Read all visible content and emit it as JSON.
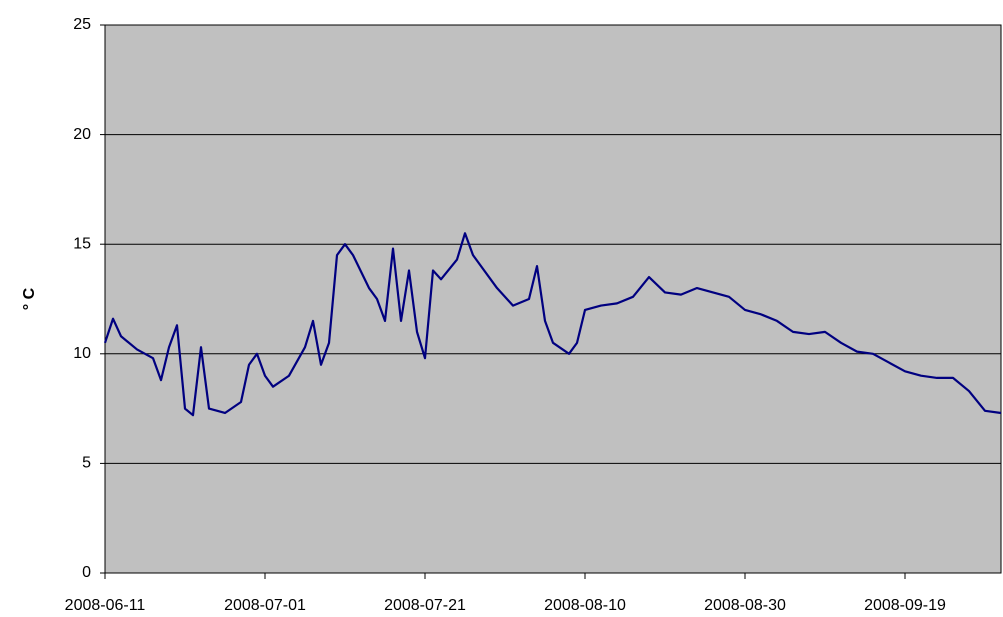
{
  "chart_data": {
    "type": "line",
    "y_label": "° C",
    "x": [
      "2008-06-11",
      "2008-06-12",
      "2008-06-13",
      "2008-06-15",
      "2008-06-17",
      "2008-06-18",
      "2008-06-19",
      "2008-06-20",
      "2008-06-21",
      "2008-06-22",
      "2008-06-23",
      "2008-06-24",
      "2008-06-26",
      "2008-06-28",
      "2008-06-29",
      "2008-06-30",
      "2008-07-01",
      "2008-07-02",
      "2008-07-04",
      "2008-07-06",
      "2008-07-07",
      "2008-07-08",
      "2008-07-09",
      "2008-07-10",
      "2008-07-11",
      "2008-07-12",
      "2008-07-14",
      "2008-07-15",
      "2008-07-16",
      "2008-07-17",
      "2008-07-18",
      "2008-07-19",
      "2008-07-20",
      "2008-07-21",
      "2008-07-22",
      "2008-07-23",
      "2008-07-25",
      "2008-07-26",
      "2008-07-27",
      "2008-07-28",
      "2008-07-30",
      "2008-08-01",
      "2008-08-03",
      "2008-08-04",
      "2008-08-05",
      "2008-08-06",
      "2008-08-08",
      "2008-08-09",
      "2008-08-10",
      "2008-08-12",
      "2008-08-14",
      "2008-08-16",
      "2008-08-18",
      "2008-08-20",
      "2008-08-22",
      "2008-08-24",
      "2008-08-26",
      "2008-08-28",
      "2008-08-30",
      "2008-09-01",
      "2008-09-03",
      "2008-09-05",
      "2008-09-07",
      "2008-09-09",
      "2008-09-11",
      "2008-09-13",
      "2008-09-15",
      "2008-09-17",
      "2008-09-19",
      "2008-09-21",
      "2008-09-23",
      "2008-09-25",
      "2008-09-27",
      "2008-09-29",
      "2008-10-01"
    ],
    "series": [
      {
        "color": "#000080",
        "values": [
          10.5,
          11.6,
          10.8,
          10.2,
          9.8,
          8.8,
          10.3,
          11.3,
          7.5,
          7.2,
          10.3,
          7.5,
          7.3,
          7.8,
          9.5,
          10.0,
          9.0,
          8.5,
          9.0,
          10.3,
          11.5,
          9.5,
          10.5,
          14.5,
          15.0,
          14.5,
          13.0,
          12.5,
          11.5,
          14.8,
          11.5,
          13.8,
          11.0,
          9.8,
          13.8,
          13.4,
          14.3,
          15.5,
          14.5,
          14.0,
          13.0,
          12.2,
          12.5,
          14.0,
          11.5,
          10.5,
          10.0,
          10.5,
          12.0,
          12.2,
          12.3,
          12.6,
          13.5,
          12.8,
          12.7,
          13.0,
          12.8,
          12.6,
          12.0,
          11.8,
          11.5,
          11.0,
          10.9,
          11.0,
          10.5,
          10.1,
          10.0,
          9.6,
          9.2,
          9.0,
          8.9,
          8.9,
          8.3,
          7.4,
          7.3
        ]
      }
    ],
    "xlim": [
      "2008-06-11",
      "2008-10-01"
    ],
    "xticks": [
      "2008-06-11",
      "2008-07-01",
      "2008-07-21",
      "2008-08-10",
      "2008-08-30",
      "2008-09-19"
    ],
    "ylim": [
      0,
      25
    ],
    "yticks": [
      0,
      5,
      10,
      15,
      20,
      25
    ],
    "grid": true
  }
}
